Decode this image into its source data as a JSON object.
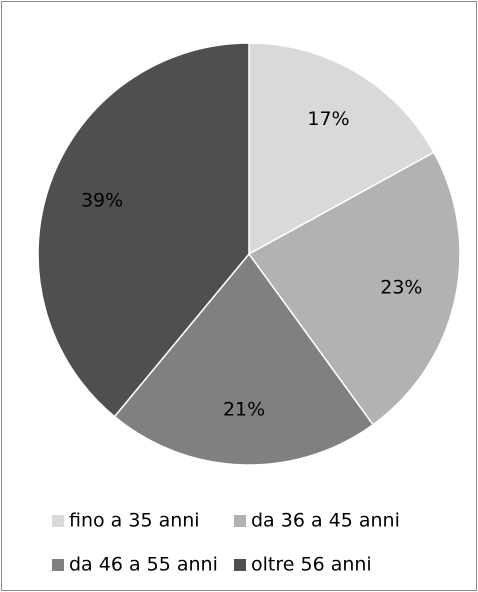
{
  "chart_data": {
    "type": "pie",
    "categories": [
      "fino a 35 anni",
      "da 36 a 45 anni",
      "da 46 a 55 anni",
      "oltre 56 anni"
    ],
    "values": [
      17,
      23,
      21,
      39
    ],
    "value_labels": [
      "17%",
      "23%",
      "21%",
      "39%"
    ],
    "colors": [
      "#d9d9d9",
      "#b2b2b2",
      "#808080",
      "#4f4f4f"
    ],
    "legend": "bottom"
  }
}
